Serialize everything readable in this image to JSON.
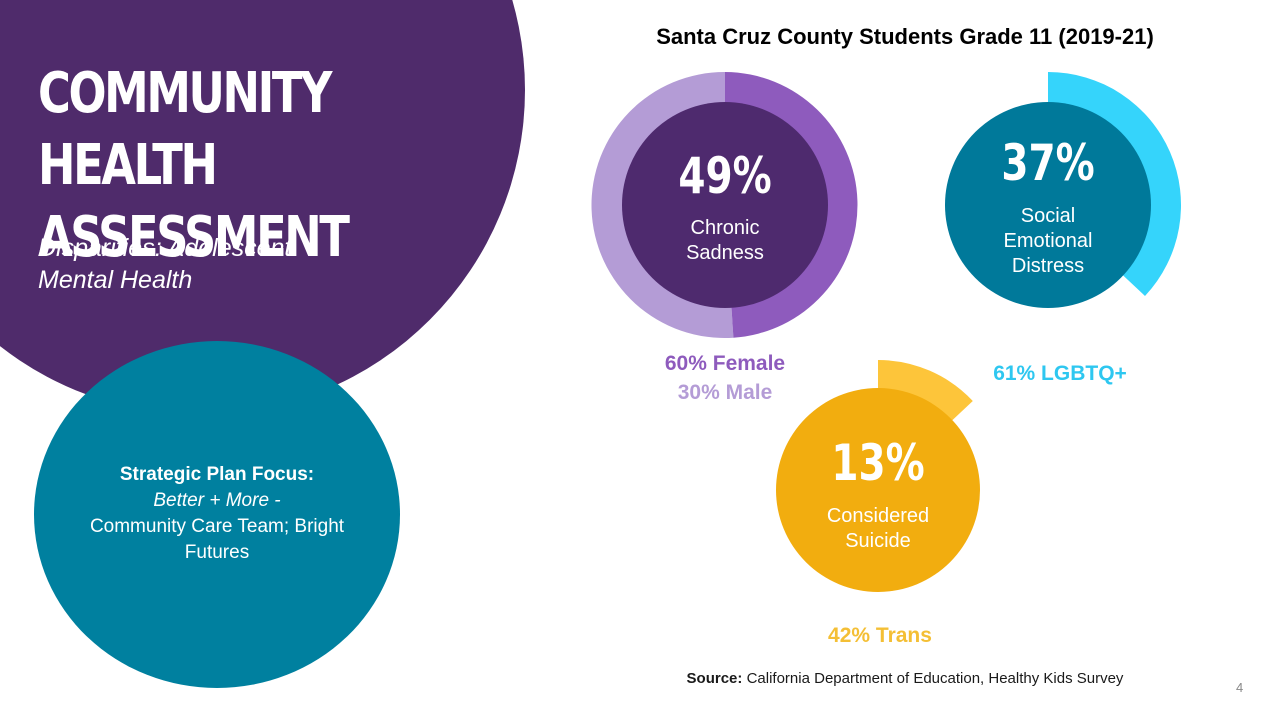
{
  "slide": {
    "title_line1": "COMMUNITY HEALTH",
    "title_line2": "ASSESSMENT",
    "subtitle": "Disparities: Adolescent Mental Health",
    "focus_heading": "Strategic Plan Focus:",
    "focus_em": "Better + More -",
    "focus_text": "Community Care Team; Bright Futures",
    "page_number": "4",
    "source_label": "Source:",
    "source_text": "California Department of Education, Healthy Kids Survey"
  },
  "colors": {
    "purple_bg": "#4f2b6b",
    "teal_bg": "#00809f"
  },
  "chart_data": {
    "type": "donut",
    "title": "Santa Cruz County Students Grade 11 (2019-21)",
    "items": [
      {
        "id": "sadness",
        "value": 49,
        "value_label": "49%",
        "label_lines": [
          "Chronic",
          "Sadness"
        ],
        "colors": {
          "inner": "#4e2a6e",
          "ring": "#8e5bbd",
          "ring_secondary": "#b49cd6"
        },
        "breakdown": [
          {
            "label": "60% Female",
            "value": 60,
            "color": "#8e5bbd"
          },
          {
            "label": "30% Male",
            "value": 30,
            "color": "#b49cd6"
          }
        ]
      },
      {
        "id": "distress",
        "value": 37,
        "value_label": "37%",
        "label_lines": [
          "Social",
          "Emotional",
          "Distress"
        ],
        "colors": {
          "inner": "#00799a",
          "ring": "#35d4fb"
        },
        "breakdown": [
          {
            "label": "61% LGBTQ+",
            "value": 61,
            "color": "#2ec7f0"
          }
        ]
      },
      {
        "id": "suicide",
        "value": 13,
        "value_label": "13%",
        "label_lines": [
          "Considered",
          "Suicide"
        ],
        "colors": {
          "inner": "#f2ad0f",
          "ring": "#fdc53a"
        },
        "breakdown": [
          {
            "label": "42% Trans",
            "value": 42,
            "color": "#f4bf35"
          }
        ]
      }
    ]
  }
}
